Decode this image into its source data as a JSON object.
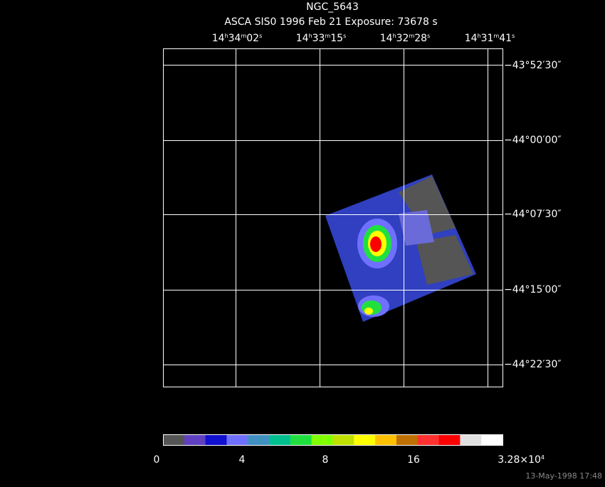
{
  "header": {
    "title": "NGC_5643",
    "subtitle": "ASCA SIS0   1996 Feb 21    Exposure: 73678 s"
  },
  "ra_labels": [
    [
      "14",
      "h",
      "34",
      "m",
      "02",
      "s"
    ],
    [
      "14",
      "h",
      "33",
      "m",
      "15",
      "s"
    ],
    [
      "14",
      "h",
      "32",
      "m",
      "28",
      "s"
    ],
    [
      "14",
      "h",
      "31",
      "m",
      "41",
      "s"
    ]
  ],
  "dec_labels": [
    "−43°52′30″",
    "−44°00′00″",
    "−44°07′30″",
    "−44°15′00″",
    "−44°22′30″"
  ],
  "colorbar": {
    "colors": [
      "#555555",
      "#6040c0",
      "#1010d0",
      "#7070ff",
      "#4090c0",
      "#00c090",
      "#20e040",
      "#80ff00",
      "#c0e000",
      "#ffff00",
      "#ffc000",
      "#c07000",
      "#ff3030",
      "#ff0000",
      "#e0e0e0",
      "#ffffff"
    ],
    "labels": [
      [
        "0"
      ],
      [
        "4"
      ],
      [
        "8"
      ],
      [
        "16"
      ],
      [
        "3.28×10",
        "4"
      ]
    ]
  },
  "footer": "13-May-1998 17:48"
}
